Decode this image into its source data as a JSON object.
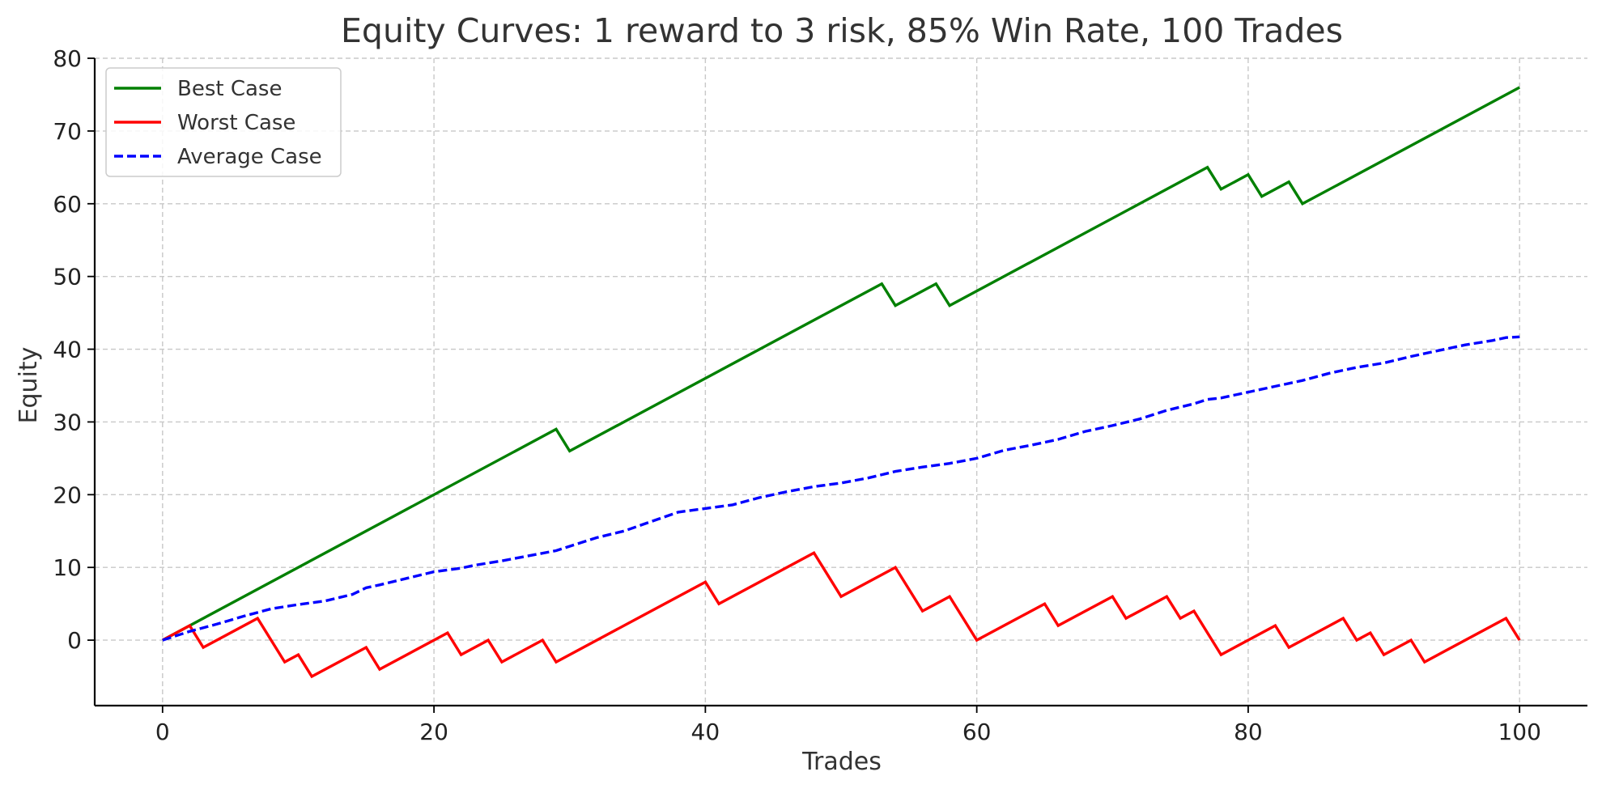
{
  "chart_data": {
    "type": "line",
    "title": "Equity Curves: 1 reward to 3 risk, 85% Win Rate, 100 Trades",
    "xlabel": "Trades",
    "ylabel": "Equity",
    "xlim": [
      -5,
      105
    ],
    "ylim": [
      -9,
      80
    ],
    "xticks": [
      0,
      20,
      40,
      60,
      80,
      100
    ],
    "yticks": [
      0,
      10,
      20,
      30,
      40,
      50,
      60,
      70,
      80
    ],
    "grid": true,
    "legend_position": "top-left",
    "series": [
      {
        "name": "Best Case",
        "color": "#008000",
        "style": "solid",
        "x": [
          0,
          29,
          30,
          53,
          54,
          57,
          58,
          77,
          78,
          80,
          81,
          83,
          84,
          100
        ],
        "y": [
          0,
          29,
          26,
          49,
          46,
          49,
          46,
          65,
          62,
          64,
          61,
          63,
          60,
          76
        ]
      },
      {
        "name": "Worst Case",
        "color": "#ff0000",
        "style": "solid",
        "x": [
          0,
          2,
          3,
          7,
          9,
          10,
          11,
          15,
          16,
          21,
          22,
          24,
          25,
          28,
          29,
          40,
          41,
          48,
          50,
          54,
          56,
          58,
          60,
          65,
          66,
          70,
          71,
          74,
          75,
          76,
          78,
          82,
          83,
          87,
          88,
          89,
          90,
          92,
          93,
          99,
          100
        ],
        "y": [
          0,
          2,
          -1,
          3,
          -3,
          -2,
          -5,
          -1,
          -4,
          1,
          -2,
          0,
          -3,
          0,
          -3,
          8,
          5,
          12,
          6,
          10,
          4,
          6,
          0,
          5,
          2,
          6,
          3,
          6,
          3,
          4,
          -2,
          2,
          -1,
          3,
          0,
          1,
          -2,
          0,
          -3,
          3,
          0
        ]
      },
      {
        "name": "Average Case",
        "color": "#0000ff",
        "style": "dashed",
        "x": [
          0,
          2,
          4,
          6,
          8,
          10,
          12,
          14,
          15,
          16,
          18,
          20,
          22,
          23,
          25,
          27,
          29,
          30,
          32,
          34,
          36,
          38,
          40,
          42,
          44,
          46,
          48,
          50,
          52,
          54,
          56,
          58,
          60,
          62,
          64,
          66,
          68,
          70,
          72,
          74,
          76,
          77,
          78,
          80,
          82,
          84,
          86,
          88,
          90,
          92,
          94,
          96,
          98,
          99,
          100
        ],
        "y": [
          0,
          1.2,
          2.2,
          3.3,
          4.3,
          4.9,
          5.4,
          6.3,
          7.2,
          7.6,
          8.5,
          9.4,
          9.9,
          10.3,
          10.9,
          11.6,
          12.3,
          12.9,
          14.1,
          15,
          16.3,
          17.6,
          18.1,
          18.6,
          19.6,
          20.4,
          21.1,
          21.6,
          22.3,
          23.2,
          23.8,
          24.3,
          25,
          26.1,
          26.8,
          27.6,
          28.7,
          29.5,
          30.4,
          31.6,
          32.5,
          33.1,
          33.3,
          34.1,
          34.9,
          35.7,
          36.7,
          37.5,
          38.1,
          39,
          39.8,
          40.6,
          41.2,
          41.6,
          41.7
        ]
      }
    ]
  }
}
